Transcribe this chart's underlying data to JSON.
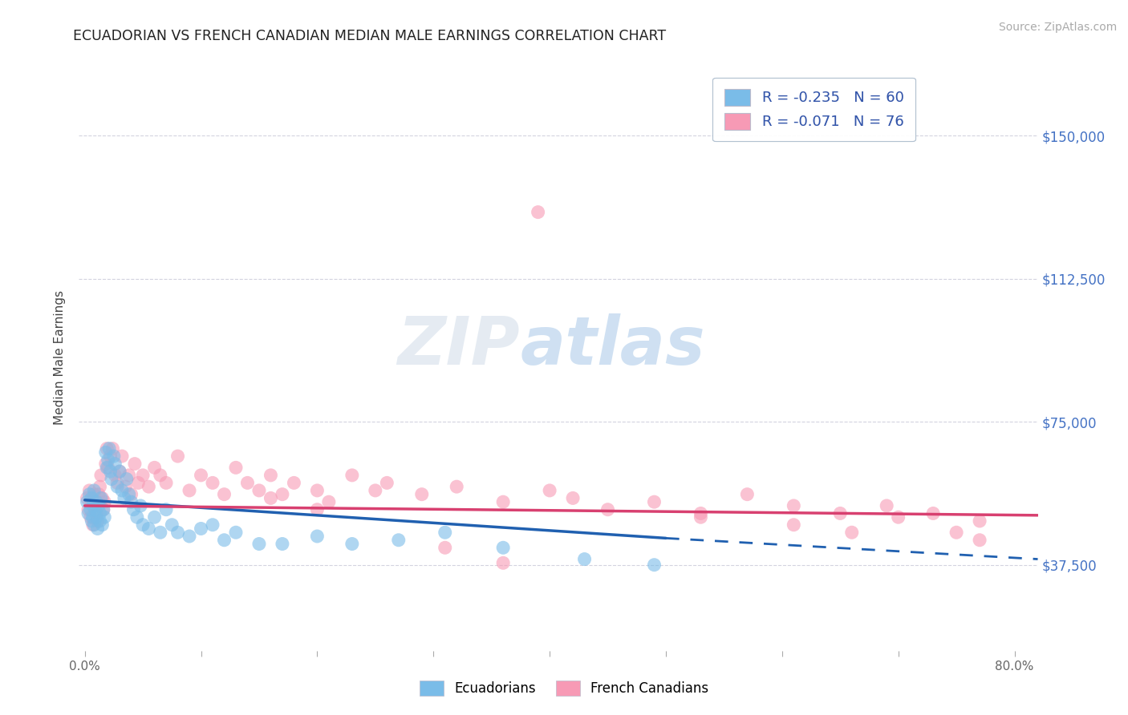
{
  "title": "ECUADORIAN VS FRENCH CANADIAN MEDIAN MALE EARNINGS CORRELATION CHART",
  "source_text": "Source: ZipAtlas.com",
  "ylabel": "Median Male Earnings",
  "x_min": -0.005,
  "x_max": 0.82,
  "y_min": 15000,
  "y_max": 168750,
  "y_ticks": [
    37500,
    75000,
    112500,
    150000
  ],
  "y_tick_labels": [
    "$37,500",
    "$75,000",
    "$112,500",
    "$150,000"
  ],
  "x_ticks": [
    0.0,
    0.1,
    0.2,
    0.3,
    0.4,
    0.5,
    0.6,
    0.7,
    0.8
  ],
  "x_tick_labels": [
    "0.0%",
    "",
    "",
    "",
    "",
    "",
    "",
    "",
    "80.0%"
  ],
  "legend_label_ecu": "R = -0.235   N = 60",
  "legend_label_frc": "R = -0.071   N = 76",
  "watermark_zip": "ZIP",
  "watermark_atlas": "atlas",
  "ecuadorians_color": "#7abce8",
  "french_canadians_color": "#f79ab5",
  "ecuadorians_line_color": "#2060b0",
  "french_canadians_line_color": "#d84070",
  "background_color": "#ffffff",
  "grid_color": "#c8c8d8",
  "ecuadorians_x": [
    0.002,
    0.003,
    0.004,
    0.005,
    0.006,
    0.006,
    0.007,
    0.007,
    0.008,
    0.008,
    0.009,
    0.01,
    0.01,
    0.011,
    0.012,
    0.013,
    0.013,
    0.014,
    0.015,
    0.016,
    0.017,
    0.018,
    0.019,
    0.02,
    0.021,
    0.022,
    0.023,
    0.025,
    0.026,
    0.028,
    0.03,
    0.032,
    0.034,
    0.036,
    0.038,
    0.04,
    0.042,
    0.045,
    0.048,
    0.05,
    0.055,
    0.06,
    0.065,
    0.07,
    0.075,
    0.08,
    0.09,
    0.1,
    0.11,
    0.12,
    0.13,
    0.15,
    0.17,
    0.2,
    0.23,
    0.27,
    0.31,
    0.36,
    0.43,
    0.49
  ],
  "ecuadorians_y": [
    54000,
    51000,
    56000,
    52000,
    49000,
    55000,
    50000,
    53000,
    48000,
    57000,
    52000,
    50000,
    54000,
    47000,
    53000,
    51000,
    49000,
    55000,
    48000,
    52000,
    50000,
    67000,
    63000,
    65000,
    68000,
    62000,
    60000,
    66000,
    64000,
    58000,
    62000,
    57000,
    55000,
    60000,
    56000,
    54000,
    52000,
    50000,
    53000,
    48000,
    47000,
    50000,
    46000,
    52000,
    48000,
    46000,
    45000,
    47000,
    48000,
    44000,
    46000,
    43000,
    43000,
    45000,
    43000,
    44000,
    46000,
    42000,
    39000,
    37500
  ],
  "french_canadians_x": [
    0.002,
    0.003,
    0.004,
    0.005,
    0.006,
    0.007,
    0.008,
    0.009,
    0.01,
    0.011,
    0.012,
    0.013,
    0.014,
    0.015,
    0.016,
    0.017,
    0.018,
    0.019,
    0.02,
    0.022,
    0.024,
    0.026,
    0.028,
    0.03,
    0.032,
    0.035,
    0.038,
    0.04,
    0.043,
    0.046,
    0.05,
    0.055,
    0.06,
    0.065,
    0.07,
    0.08,
    0.09,
    0.1,
    0.11,
    0.12,
    0.13,
    0.14,
    0.15,
    0.16,
    0.17,
    0.18,
    0.2,
    0.21,
    0.23,
    0.26,
    0.29,
    0.32,
    0.36,
    0.4,
    0.42,
    0.45,
    0.49,
    0.53,
    0.57,
    0.61,
    0.65,
    0.69,
    0.73,
    0.77,
    0.39,
    0.53,
    0.61,
    0.66,
    0.7,
    0.75,
    0.77,
    0.16,
    0.2,
    0.25,
    0.31,
    0.36
  ],
  "french_canadians_y": [
    55000,
    52000,
    57000,
    50000,
    54000,
    48000,
    56000,
    53000,
    51000,
    49000,
    56000,
    58000,
    61000,
    55000,
    52000,
    54000,
    64000,
    68000,
    63000,
    66000,
    68000,
    61000,
    59000,
    62000,
    66000,
    58000,
    61000,
    56000,
    64000,
    59000,
    61000,
    58000,
    63000,
    61000,
    59000,
    66000,
    57000,
    61000,
    59000,
    56000,
    63000,
    59000,
    57000,
    61000,
    56000,
    59000,
    57000,
    54000,
    61000,
    59000,
    56000,
    58000,
    54000,
    57000,
    55000,
    52000,
    54000,
    51000,
    56000,
    53000,
    51000,
    53000,
    51000,
    49000,
    130000,
    50000,
    48000,
    46000,
    50000,
    46000,
    44000,
    55000,
    52000,
    57000,
    42000,
    38000
  ],
  "ecu_trend_x0": 0.0,
  "ecu_trend_x1": 0.5,
  "ecu_trend_x2": 0.82,
  "ecu_trend_y0": 54500,
  "ecu_trend_y1": 44500,
  "ecu_trend_y2": 39000,
  "frc_trend_x0": 0.0,
  "frc_trend_x1": 0.82,
  "frc_trend_y0": 53000,
  "frc_trend_y1": 50500
}
